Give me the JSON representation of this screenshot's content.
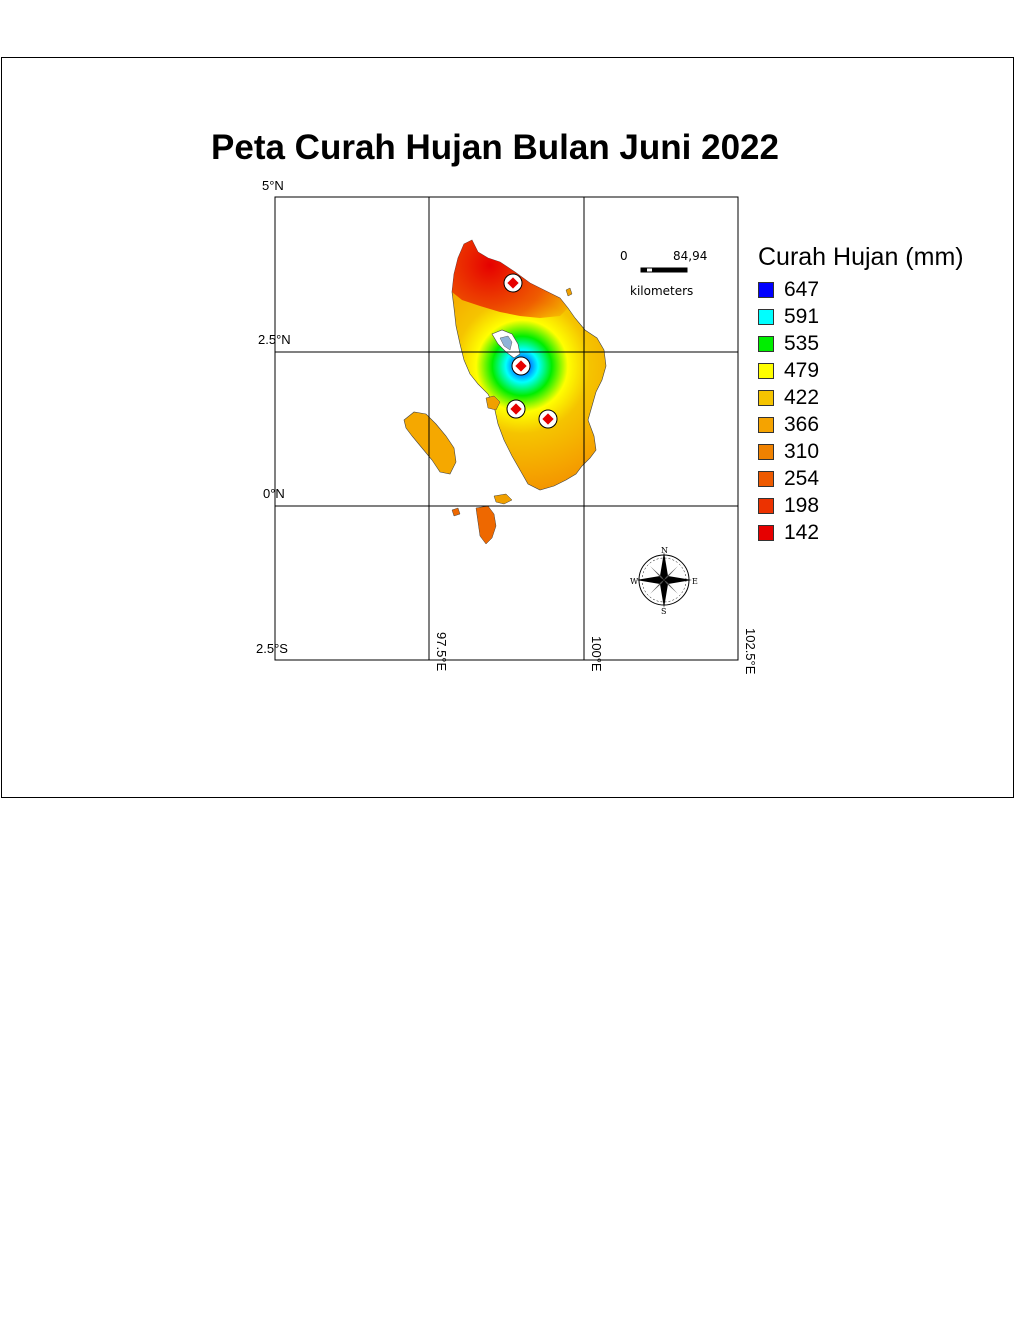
{
  "map": {
    "title": "Peta Curah Hujan Bulan Juni 2022",
    "lat_labels": [
      "5°N",
      "2.5°N",
      "0°N",
      "2.5°S"
    ],
    "lon_labels": [
      "97.5°E",
      "100°E",
      "102.5°E"
    ],
    "scale_bar": {
      "start": "0",
      "end": "84,94",
      "unit": "kilometers"
    },
    "compass": {
      "n": "N",
      "s": "S",
      "e": "E",
      "w": "W"
    }
  },
  "legend": {
    "title": "Curah Hujan (mm)",
    "items": [
      {
        "value": "647",
        "color": "#0000ff"
      },
      {
        "value": "591",
        "color": "#00ffff"
      },
      {
        "value": "535",
        "color": "#00ee00"
      },
      {
        "value": "479",
        "color": "#ffff00"
      },
      {
        "value": "422",
        "color": "#f5c400"
      },
      {
        "value": "366",
        "color": "#f5a300"
      },
      {
        "value": "310",
        "color": "#f08200"
      },
      {
        "value": "254",
        "color": "#ee5a00"
      },
      {
        "value": "198",
        "color": "#ec3200"
      },
      {
        "value": "142",
        "color": "#e60000"
      }
    ]
  }
}
